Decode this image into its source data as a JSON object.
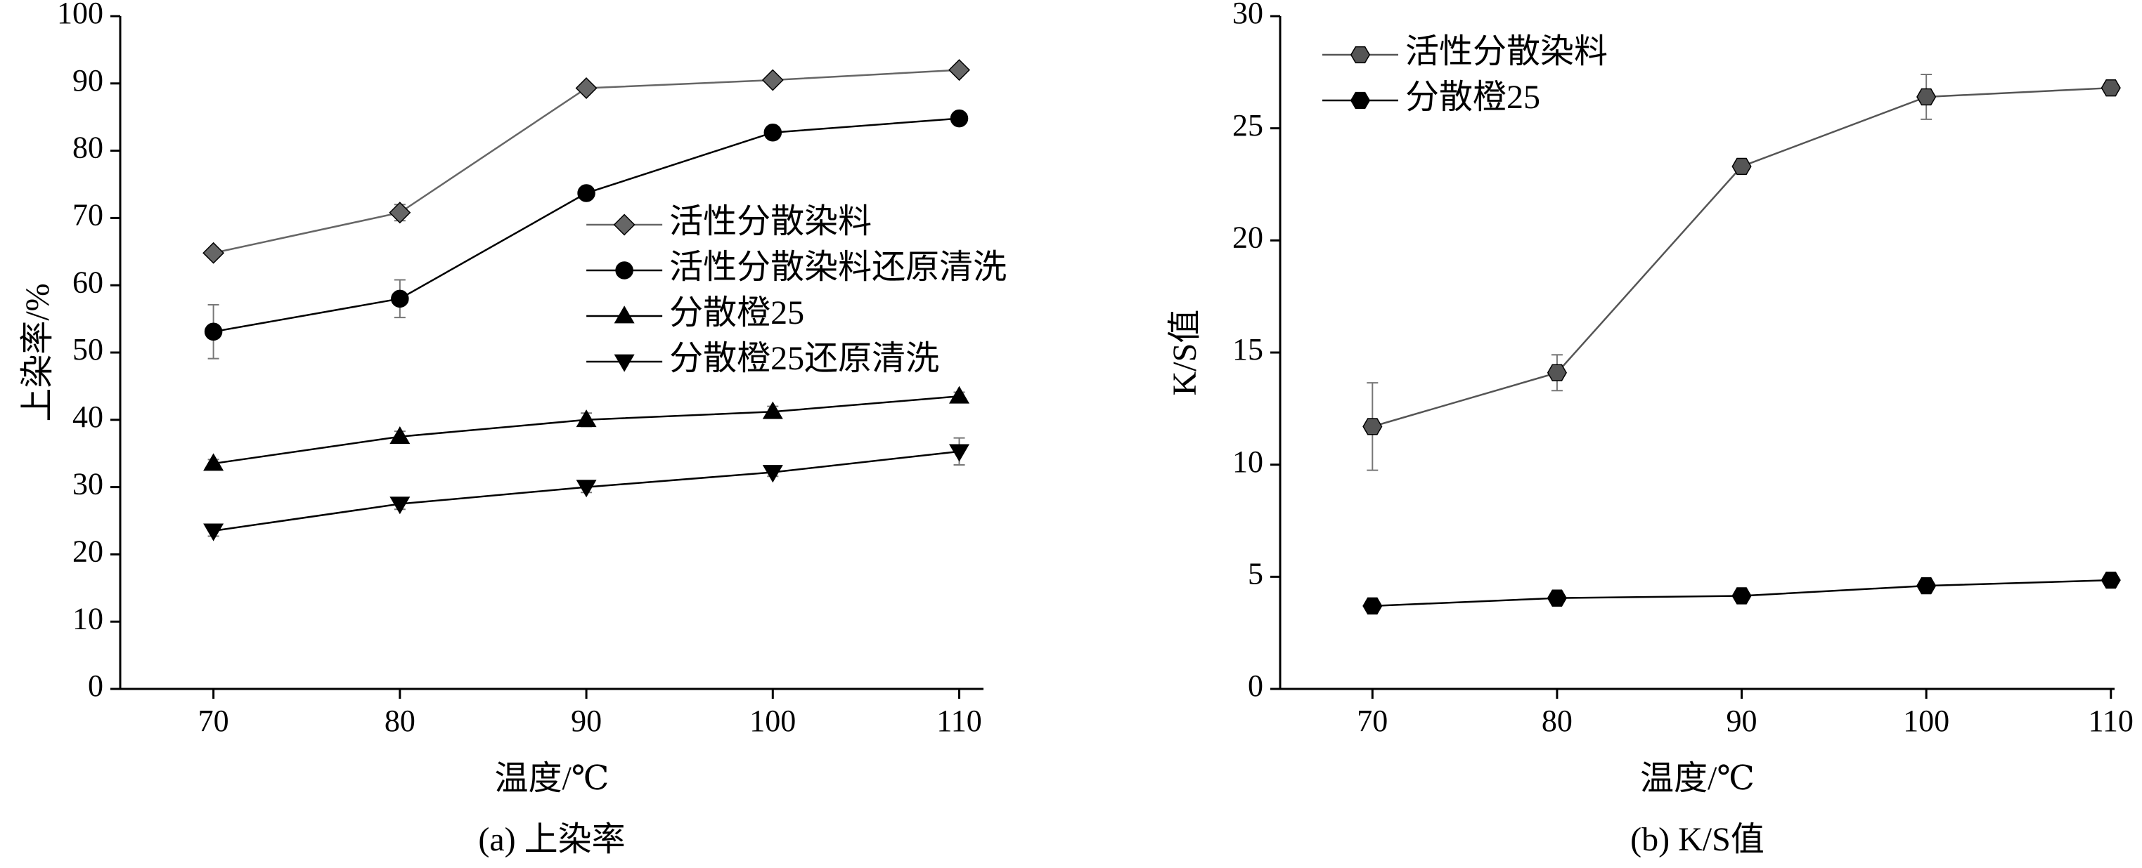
{
  "chart_data": [
    {
      "type": "line",
      "caption": "(a) 上染率",
      "xlabel": "温度/℃",
      "ylabel": "上染率/%",
      "x": [
        70,
        80,
        90,
        100,
        110
      ],
      "xlim": [
        65,
        111.3
      ],
      "xticks": [
        70,
        80,
        90,
        100,
        110
      ],
      "ylim": [
        0,
        100
      ],
      "yticks": [
        0,
        10,
        20,
        30,
        40,
        50,
        60,
        70,
        80,
        90,
        100
      ],
      "legend": "center-right",
      "series": [
        {
          "name": "活性分散染料",
          "color": "#666666",
          "marker": "diamond",
          "values": [
            64.8,
            70.8,
            89.3,
            90.5,
            92.0
          ],
          "errors": [
            0.6,
            1.2,
            0.6,
            0.6,
            0.6
          ]
        },
        {
          "name": "活性分散染料还原清洗",
          "color": "#000000",
          "marker": "circle",
          "values": [
            53.1,
            58.0,
            73.7,
            82.7,
            84.8
          ],
          "errors": [
            4.0,
            2.8,
            0.8,
            0.6,
            0.6
          ]
        },
        {
          "name": "分散橙25",
          "color": "#000000",
          "marker": "triangle-up",
          "values": [
            33.5,
            37.5,
            40.0,
            41.2,
            43.5
          ],
          "errors": [
            0.6,
            0.8,
            1.0,
            0.8,
            0.6
          ]
        },
        {
          "name": "分散橙25还原清洗",
          "color": "#000000",
          "marker": "triangle-down",
          "values": [
            23.5,
            27.5,
            30.0,
            32.2,
            35.3
          ],
          "errors": [
            0.8,
            0.8,
            0.8,
            0.6,
            2.0
          ]
        }
      ]
    },
    {
      "type": "line",
      "caption": "(b) K/S值",
      "xlabel": "温度/℃",
      "ylabel": "K/S值",
      "x": [
        70,
        80,
        90,
        100,
        110
      ],
      "xlim": [
        65,
        110.2
      ],
      "xticks": [
        70,
        80,
        90,
        100,
        110
      ],
      "ylim": [
        0,
        30
      ],
      "yticks": [
        0,
        5,
        10,
        15,
        20,
        25,
        30
      ],
      "legend": "upper-left",
      "series": [
        {
          "name": "活性分散染料",
          "color": "#555555",
          "marker": "hexagon",
          "values": [
            11.7,
            14.1,
            23.3,
            26.4,
            26.8
          ],
          "errors": [
            1.95,
            0.8,
            0.2,
            1.0,
            0.2
          ]
        },
        {
          "name": "分散橙25",
          "color": "#000000",
          "marker": "hexagon",
          "values": [
            3.7,
            4.05,
            4.15,
            4.6,
            4.85
          ],
          "errors": [
            0.1,
            0.15,
            0.15,
            0.3,
            0.15
          ]
        }
      ]
    }
  ]
}
